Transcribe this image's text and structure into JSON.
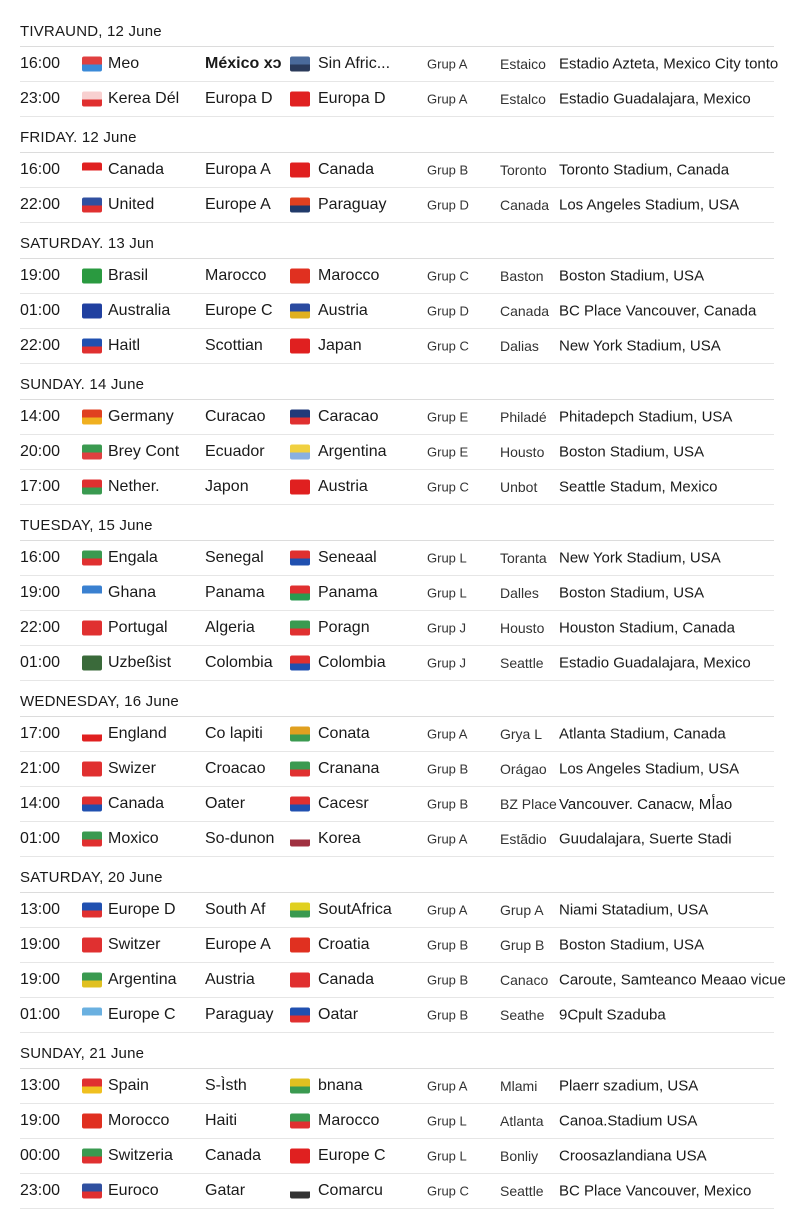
{
  "sections": [
    {
      "day": "TIVRAUND, 12 June",
      "rows": [
        {
          "time": "16:00",
          "team1": "Meo",
          "col3": "México xɔ",
          "team2": "Sin Afric...",
          "group": "Grup A",
          "city": "Estaico",
          "venue": "Estadio Azteta, Mexico City tonto",
          "flag1": [
            "#e04040",
            "#3a8ad8"
          ],
          "flag2": [
            "#4a6a9a",
            "#2a3a5a"
          ]
        },
        {
          "time": "23:00",
          "team1": "Kerea Dél",
          "col3": "Europa D",
          "team2": "Europa D",
          "group": "Grup A",
          "city": "Estalco",
          "venue": "Estadio Guadalajara, Mexico",
          "flag1": [
            "#f8d0d0",
            "#e03030"
          ],
          "flag2": [
            "#e02020",
            "#e02020"
          ]
        }
      ]
    },
    {
      "day": "FRIDAY. 12 June",
      "rows": [
        {
          "time": "16:00",
          "team1": "Canada",
          "col3": "Europa A",
          "team2": "Canada",
          "group": "Grup B",
          "city": "Toronto",
          "venue": "Toronto Stadium, Canada",
          "flag1": [
            "#e02020",
            "#ffffff"
          ],
          "flag2": [
            "#e02020",
            "#e02020"
          ]
        },
        {
          "time": "22:00",
          "team1": "United",
          "col3": "Europe A",
          "team2": "Paraguay",
          "group": "Grup D",
          "city": "Canada",
          "venue": "Los Angeles Stadium, USA",
          "flag1": [
            "#3050a0",
            "#e03030"
          ],
          "flag2": [
            "#e04020",
            "#203a6a"
          ]
        }
      ]
    },
    {
      "day": "SATURDAY. 13 Jun",
      "rows": [
        {
          "time": "19:00",
          "team1": "Brasil",
          "col3": "Marocco",
          "team2": "Marocco",
          "group": "Grup C",
          "city": "Baston",
          "venue": "Boston Stadium, USA",
          "flag1": [
            "#2a9a40",
            "#2a9a40"
          ],
          "flag2": [
            "#e03020",
            "#e03020"
          ]
        },
        {
          "time": "01:00",
          "team1": "Australia",
          "col3": "Europe C",
          "team2": "Austria",
          "group": "Grup D",
          "city": "Canada",
          "venue": "BC Place Vancouver, Canada",
          "flag1": [
            "#2040a0",
            "#2040a0"
          ],
          "flag2": [
            "#2a4aa0",
            "#e0b020"
          ]
        },
        {
          "time": "22:00",
          "team1": "Haitl",
          "col3": "Scottian",
          "team2": "Japan",
          "group": "Grup C",
          "city": "Dalias",
          "venue": "New York Stadium, USA",
          "flag1": [
            "#2050b0",
            "#e03030"
          ],
          "flag2": [
            "#e02020",
            "#e02020"
          ]
        }
      ]
    },
    {
      "day": "SUNDAY. 14 June",
      "rows": [
        {
          "time": "14:00",
          "team1": "Germany",
          "col3": "Curacao",
          "team2": "Caracao",
          "group": "Grup E",
          "city": "Philadé",
          "venue": "Phitadepch Stadium, USA",
          "flag1": [
            "#e04020",
            "#f0b020"
          ],
          "flag2": [
            "#203a7a",
            "#e03030"
          ]
        },
        {
          "time": "20:00",
          "team1": "Brey Cont",
          "col3": "Ecuador",
          "team2": "Argentina",
          "group": "Grup E",
          "city": "Housto",
          "venue": "Boston Stadium, USA",
          "flag1": [
            "#3a9a50",
            "#e04040"
          ],
          "flag2": [
            "#f0d040",
            "#8ab0e0"
          ]
        },
        {
          "time": "17:00",
          "team1": "Nether.",
          "col3": "Japon",
          "team2": "Austria",
          "group": "Grup C",
          "city": "Unbot",
          "venue": "Seattle Stadum, Mexico",
          "flag1": [
            "#e03030",
            "#3a9a50"
          ],
          "flag2": [
            "#e02020",
            "#e02020"
          ]
        }
      ]
    },
    {
      "day": "TUESDAY, 15 June",
      "rows": [
        {
          "time": "16:00",
          "team1": "Engala",
          "col3": "Senegal",
          "team2": "Seneaal",
          "group": "Grup L",
          "city": "Toranta",
          "venue": "New York Stadium, USA",
          "flag1": [
            "#3a9a50",
            "#e03030"
          ],
          "flag2": [
            "#e03030",
            "#2050b0"
          ]
        },
        {
          "time": "19:00",
          "team1": "Ghana",
          "col3": "Panama",
          "team2": "Panama",
          "group": "Grup L",
          "city": "Dalles",
          "venue": "Boston Stadium, USA",
          "flag1": [
            "#3a80d0",
            "#ffffff"
          ],
          "flag2": [
            "#e03030",
            "#2a9a50"
          ]
        },
        {
          "time": "22:00",
          "team1": "Portugal",
          "col3": "Algeria",
          "team2": "Poragn",
          "group": "Grup J",
          "city": "Housto",
          "venue": "Houston Stadium, Canada",
          "flag1": [
            "#e03030",
            "#e03030"
          ],
          "flag2": [
            "#3a9a50",
            "#e03030"
          ]
        },
        {
          "time": "01:00",
          "team1": "Uzbeßist",
          "col3": "Colombia",
          "team2": "Colombia",
          "group": "Grup J",
          "city": "Seattle",
          "venue": "Estadio Guadalajara, Mexico",
          "flag1": [
            "#3a6a3a",
            "#3a6a3a"
          ],
          "flag2": [
            "#e03030",
            "#2050b0"
          ]
        }
      ]
    },
    {
      "day": "WEDNESDAY, 16 June",
      "rows": [
        {
          "time": "17:00",
          "team1": "England",
          "col3": "Co lapiti",
          "team2": "Conata",
          "group": "Grup A",
          "city": "Grya L",
          "venue": "Atlanta Stadium, Canada",
          "flag1": [
            "#ffffff",
            "#e02020"
          ],
          "flag2": [
            "#e0a020",
            "#3a9a50"
          ]
        },
        {
          "time": "21:00",
          "team1": "Swizer",
          "col3": "Croacao",
          "team2": "Cranana",
          "group": "Grup B",
          "city": "Orágao",
          "venue": "Los Angeles Stadium, USA",
          "flag1": [
            "#e03030",
            "#e03030"
          ],
          "flag2": [
            "#3a9a50",
            "#e03030"
          ]
        },
        {
          "time": "14:00",
          "team1": "Canada",
          "col3": "Oater",
          "team2": "Cacesr",
          "group": "Grup B",
          "city": "BZ Place",
          "venue": "Vancouver. Canacw, Mأao",
          "flag1": [
            "#e03030",
            "#2050b0"
          ],
          "flag2": [
            "#e03030",
            "#2050b0"
          ]
        },
        {
          "time": "01:00",
          "team1": "Moxico",
          "col3": "So-dunon",
          "team2": "Korea",
          "group": "Grup A",
          "city": "Estãdio",
          "venue": "Guudalajara, Suerte Stadi",
          "flag1": [
            "#3a9a50",
            "#e03030"
          ],
          "flag2": [
            "#ffffff",
            "#a03040"
          ]
        }
      ]
    },
    {
      "day": "SATURDAY, 20 June",
      "rows": [
        {
          "time": "13:00",
          "team1": "Europe D",
          "col3": "South Af",
          "team2": "SoutAfrica",
          "group": "Grup A",
          "city": "Grup A",
          "venue": "Niami Statadium, USA",
          "flag1": [
            "#2050b0",
            "#e03030"
          ],
          "flag2": [
            "#e0d020",
            "#3a9a50"
          ]
        },
        {
          "time": "19:00",
          "team1": "Switzer",
          "col3": "Europe A",
          "team2": "Croatia",
          "group": "Grup B",
          "city": "Grup B",
          "venue": "Boston Stadium, USA",
          "flag1": [
            "#e03030",
            "#e03030"
          ],
          "flag2": [
            "#e03020",
            "#e03020"
          ]
        },
        {
          "time": "19:00",
          "team1": "Argentina",
          "col3": "Austria",
          "team2": "Canada",
          "group": "Grup B",
          "city": "Canaco",
          "venue": "Caroute, Samteanco Meaao vicue",
          "flag1": [
            "#3a9a50",
            "#e0c020"
          ],
          "flag2": [
            "#e03030",
            "#e03030"
          ]
        },
        {
          "time": "01:00",
          "team1": "Europe C",
          "col3": "Paraguay",
          "team2": "Oatar",
          "group": "Grup B",
          "city": "Seathe",
          "venue": "9Cpult Szaduba",
          "flag1": [
            "#6ab0e0",
            "#ffffff"
          ],
          "flag2": [
            "#2050b0",
            "#e03030"
          ]
        }
      ]
    },
    {
      "day": "SUNDAY, 21 June",
      "rows": [
        {
          "time": "13:00",
          "team1": "Spain",
          "col3": "S-Ìsth",
          "team2": "bnana",
          "group": "Grup A",
          "city": "Mlami",
          "venue": "Plaerr szadium, USA",
          "flag1": [
            "#e03030",
            "#f0c020"
          ],
          "flag2": [
            "#e0c020",
            "#3a9a50"
          ]
        },
        {
          "time": "19:00",
          "team1": "Morocco",
          "col3": "Haiti",
          "team2": "Marocco",
          "group": "Grup L",
          "city": "Atlanta",
          "venue": "Canoa.Stadium USA",
          "flag1": [
            "#e03020",
            "#e03020"
          ],
          "flag2": [
            "#3a9a50",
            "#e03030"
          ]
        },
        {
          "time": "00:00",
          "team1": "Switzeria",
          "col3": "Canada",
          "team2": "Europe C",
          "group": "Grup L",
          "city": "Bonliy",
          "venue": "Croosazlandiana USA",
          "flag1": [
            "#3a9a50",
            "#e03030"
          ],
          "flag2": [
            "#e02020",
            "#e02020"
          ]
        },
        {
          "time": "23:00",
          "team1": "Euroco",
          "col3": "Gatar",
          "team2": "Comarcu",
          "group": "Grup C",
          "city": "Seattle",
          "venue": "BC Place Vancouver, Mexico",
          "flag1": [
            "#3050a0",
            "#e03030"
          ],
          "flag2": [
            "#ffffff",
            "#333333"
          ]
        }
      ]
    }
  ]
}
